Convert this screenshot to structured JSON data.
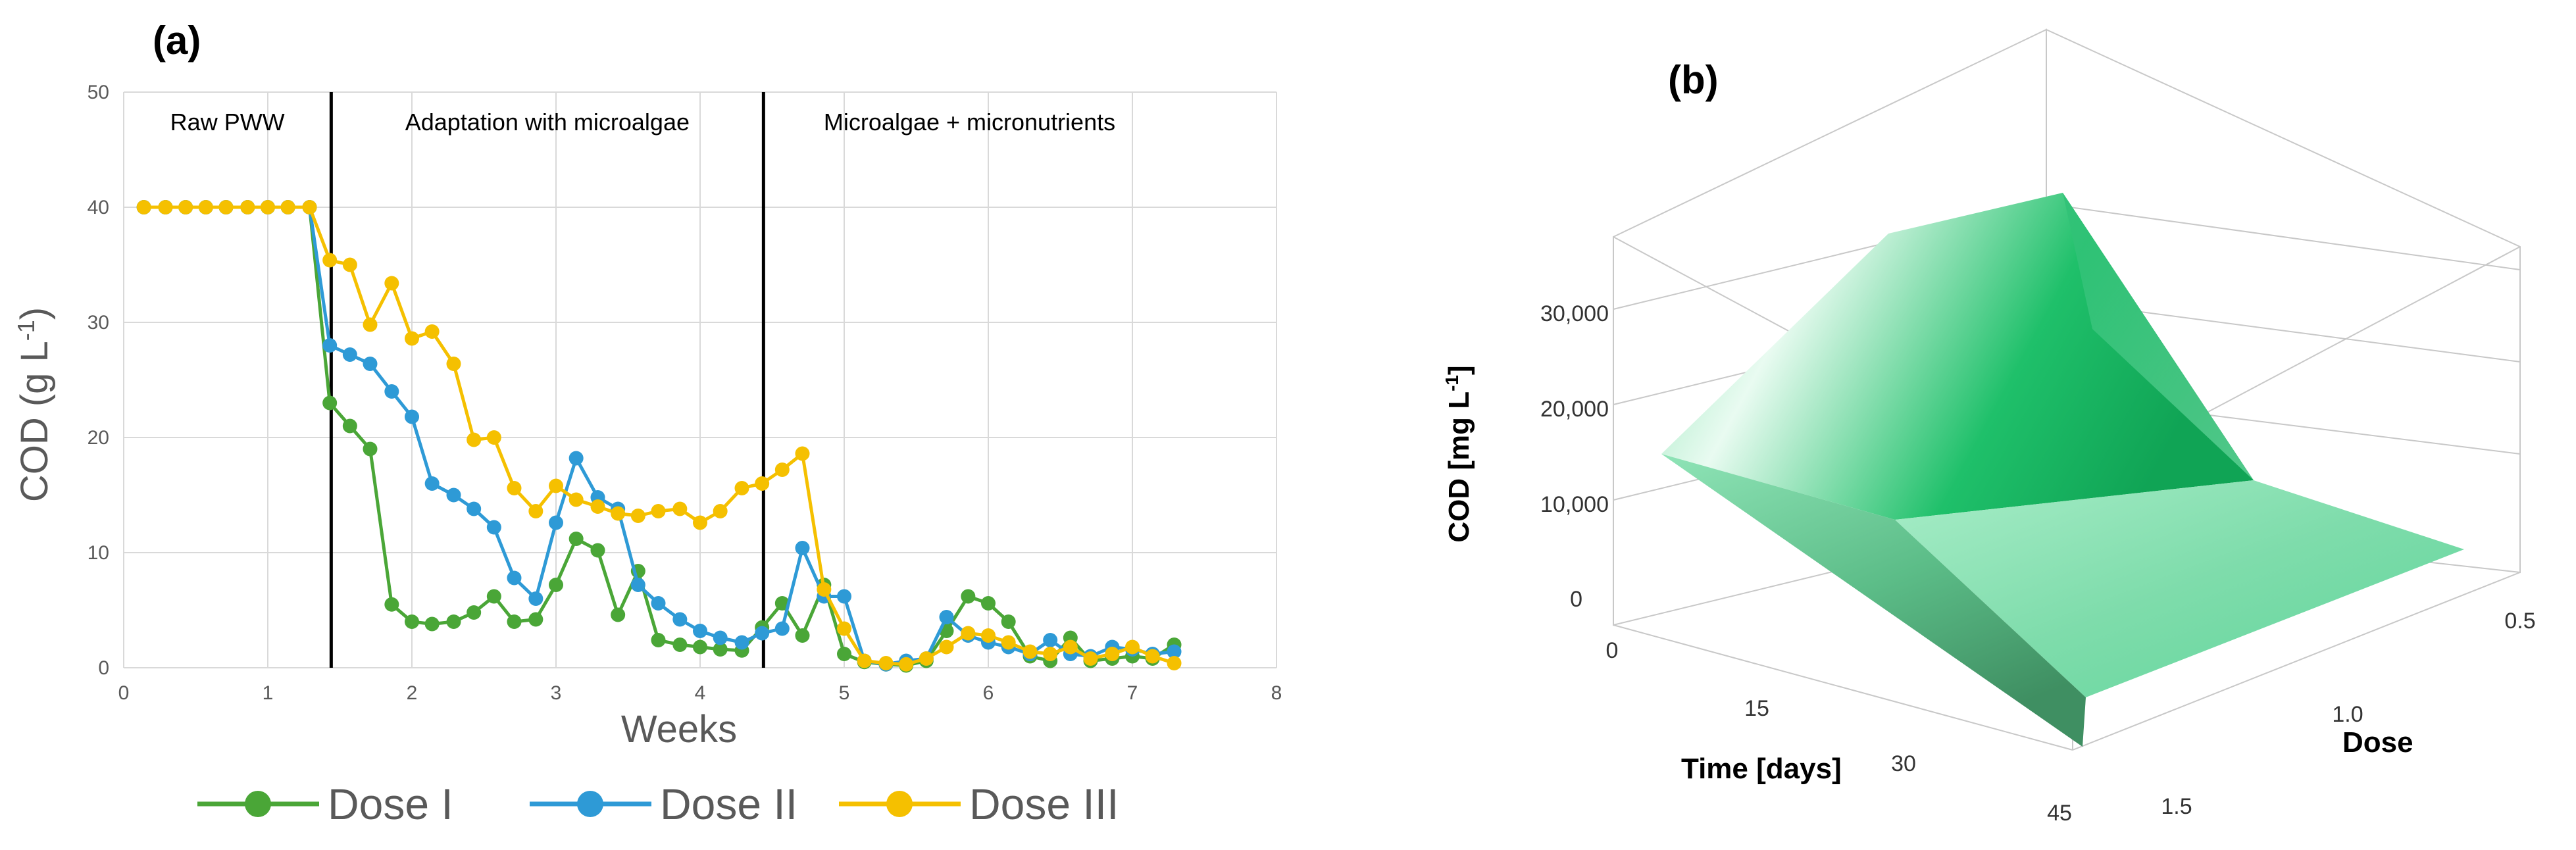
{
  "chart_data": [
    {
      "panel_label": "(a)",
      "type": "line",
      "xlabel": "Weeks",
      "ylabel_main": "COD (g L",
      "ylabel_sup": "-1",
      "ylabel_close": ")",
      "xlim": [
        0,
        8
      ],
      "ylim": [
        0,
        50
      ],
      "x_ticks": [
        0,
        1,
        2,
        3,
        4,
        5,
        6,
        7,
        8
      ],
      "y_ticks": [
        0,
        10,
        20,
        30,
        40,
        50
      ],
      "grid": true,
      "legend_position": "bottom",
      "phase_boundaries": [
        1.44,
        4.44
      ],
      "regions": [
        "Raw PWW",
        "Adaptation with microalgae",
        "Microalgae + micronutrients"
      ],
      "series": [
        {
          "name": "Dose I",
          "color": "#4aa637",
          "points": [
            [
              0.14,
              40
            ],
            [
              0.29,
              40
            ],
            [
              0.43,
              40
            ],
            [
              0.57,
              40
            ],
            [
              0.71,
              40
            ],
            [
              0.86,
              40
            ],
            [
              1.0,
              40
            ],
            [
              1.14,
              40
            ],
            [
              1.29,
              40
            ],
            [
              1.43,
              23
            ],
            [
              1.57,
              21
            ],
            [
              1.71,
              19
            ],
            [
              1.86,
              5.5
            ],
            [
              2.0,
              4
            ],
            [
              2.14,
              3.8
            ],
            [
              2.29,
              4
            ],
            [
              2.43,
              4.8
            ],
            [
              2.57,
              6.2
            ],
            [
              2.71,
              4
            ],
            [
              2.86,
              4.2
            ],
            [
              3.0,
              7.2
            ],
            [
              3.14,
              11.2
            ],
            [
              3.29,
              10.2
            ],
            [
              3.43,
              4.6
            ],
            [
              3.57,
              8.4
            ],
            [
              3.71,
              2.4
            ],
            [
              3.86,
              2.0
            ],
            [
              4.0,
              1.8
            ],
            [
              4.14,
              1.6
            ],
            [
              4.29,
              1.5
            ],
            [
              4.43,
              3.5
            ],
            [
              4.57,
              5.6
            ],
            [
              4.71,
              2.8
            ],
            [
              4.86,
              7.2
            ],
            [
              5.0,
              1.2
            ],
            [
              5.14,
              0.5
            ],
            [
              5.29,
              0.3
            ],
            [
              5.43,
              0.2
            ],
            [
              5.57,
              0.6
            ],
            [
              5.71,
              3.2
            ],
            [
              5.86,
              6.2
            ],
            [
              6.0,
              5.6
            ],
            [
              6.14,
              4.0
            ],
            [
              6.29,
              1.0
            ],
            [
              6.43,
              0.6
            ],
            [
              6.57,
              2.6
            ],
            [
              6.71,
              0.6
            ],
            [
              6.86,
              0.8
            ],
            [
              7.0,
              1.0
            ],
            [
              7.14,
              0.8
            ],
            [
              7.29,
              2.0
            ]
          ]
        },
        {
          "name": "Dose II",
          "color": "#2e9ad6",
          "points": [
            [
              0.14,
              40
            ],
            [
              0.29,
              40
            ],
            [
              0.43,
              40
            ],
            [
              0.57,
              40
            ],
            [
              0.71,
              40
            ],
            [
              0.86,
              40
            ],
            [
              1.0,
              40
            ],
            [
              1.14,
              40
            ],
            [
              1.29,
              40
            ],
            [
              1.43,
              28
            ],
            [
              1.57,
              27.2
            ],
            [
              1.71,
              26.4
            ],
            [
              1.86,
              24
            ],
            [
              2.0,
              21.8
            ],
            [
              2.14,
              16
            ],
            [
              2.29,
              15
            ],
            [
              2.43,
              13.8
            ],
            [
              2.57,
              12.2
            ],
            [
              2.71,
              7.8
            ],
            [
              2.86,
              6
            ],
            [
              3.0,
              12.6
            ],
            [
              3.14,
              18.2
            ],
            [
              3.29,
              14.8
            ],
            [
              3.43,
              13.8
            ],
            [
              3.57,
              7.2
            ],
            [
              3.71,
              5.6
            ],
            [
              3.86,
              4.2
            ],
            [
              4.0,
              3.2
            ],
            [
              4.14,
              2.6
            ],
            [
              4.29,
              2.2
            ],
            [
              4.43,
              3.0
            ],
            [
              4.57,
              3.4
            ],
            [
              4.71,
              10.4
            ],
            [
              4.86,
              6.2
            ],
            [
              5.0,
              6.2
            ],
            [
              5.14,
              0.6
            ],
            [
              5.29,
              0.3
            ],
            [
              5.43,
              0.6
            ],
            [
              5.57,
              0.8
            ],
            [
              5.71,
              4.4
            ],
            [
              5.86,
              2.8
            ],
            [
              6.0,
              2.2
            ],
            [
              6.14,
              1.8
            ],
            [
              6.29,
              1.2
            ],
            [
              6.43,
              2.4
            ],
            [
              6.57,
              1.2
            ],
            [
              6.71,
              1.0
            ],
            [
              6.86,
              1.8
            ],
            [
              7.0,
              1.6
            ],
            [
              7.14,
              1.2
            ],
            [
              7.29,
              1.4
            ]
          ]
        },
        {
          "name": "Dose III",
          "color": "#f5c000",
          "points": [
            [
              0.14,
              40
            ],
            [
              0.29,
              40
            ],
            [
              0.43,
              40
            ],
            [
              0.57,
              40
            ],
            [
              0.71,
              40
            ],
            [
              0.86,
              40
            ],
            [
              1.0,
              40
            ],
            [
              1.14,
              40
            ],
            [
              1.29,
              40
            ],
            [
              1.43,
              35.4
            ],
            [
              1.57,
              35
            ],
            [
              1.71,
              29.8
            ],
            [
              1.86,
              33.4
            ],
            [
              2.0,
              28.6
            ],
            [
              2.14,
              29.2
            ],
            [
              2.29,
              26.4
            ],
            [
              2.43,
              19.8
            ],
            [
              2.57,
              20
            ],
            [
              2.71,
              15.6
            ],
            [
              2.86,
              13.6
            ],
            [
              3.0,
              15.8
            ],
            [
              3.14,
              14.6
            ],
            [
              3.29,
              14
            ],
            [
              3.43,
              13.4
            ],
            [
              3.57,
              13.2
            ],
            [
              3.71,
              13.6
            ],
            [
              3.86,
              13.8
            ],
            [
              4.0,
              12.6
            ],
            [
              4.14,
              13.6
            ],
            [
              4.29,
              15.6
            ],
            [
              4.43,
              16
            ],
            [
              4.57,
              17.2
            ],
            [
              4.71,
              18.6
            ],
            [
              4.86,
              6.8
            ],
            [
              5.0,
              3.4
            ],
            [
              5.14,
              0.6
            ],
            [
              5.29,
              0.4
            ],
            [
              5.43,
              0.3
            ],
            [
              5.57,
              0.8
            ],
            [
              5.71,
              1.8
            ],
            [
              5.86,
              3.0
            ],
            [
              6.0,
              2.8
            ],
            [
              6.14,
              2.2
            ],
            [
              6.29,
              1.4
            ],
            [
              6.43,
              1.2
            ],
            [
              6.57,
              1.8
            ],
            [
              6.71,
              0.8
            ],
            [
              6.86,
              1.2
            ],
            [
              7.0,
              1.8
            ],
            [
              7.14,
              1.0
            ],
            [
              7.29,
              0.4
            ]
          ]
        }
      ]
    },
    {
      "panel_label": "(b)",
      "type": "surface3d",
      "zlabel_main": "COD [mg L",
      "zlabel_sup": "-1",
      "zlabel_close": "]",
      "xlabel": "Time [days]",
      "ylabel": "Dose",
      "x_ticks": [
        "0",
        "15",
        "30",
        "45"
      ],
      "y_ticks": [
        "0.5",
        "1.0",
        "1.5"
      ],
      "z_ticks": [
        "0",
        "10,000",
        "20,000",
        "30,000"
      ],
      "surface_color_light": "#eafaf0",
      "surface_color_mid": "#5fd59a",
      "surface_color_dark": "#3f8f62"
    }
  ]
}
